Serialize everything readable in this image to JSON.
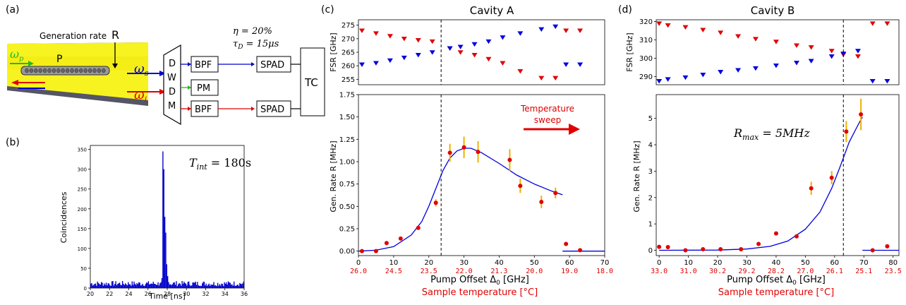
{
  "panels": {
    "a": "(a)",
    "b": "(b)",
    "c": "(c)",
    "d": "(d)"
  },
  "schematic": {
    "generation_rate": "Generation rate",
    "generation_rate_symbol": "R",
    "pump_label": "P",
    "omega_p": "ω",
    "omega_p_sub": "p",
    "omega_s": "ω",
    "omega_s_sub": "s",
    "omega_i": "ω",
    "omega_i_sub": "i",
    "dwdm": [
      "D",
      "W",
      "D",
      "M"
    ],
    "bpf": "BPF",
    "pm": "PM",
    "spad": "SPAD",
    "tc": "TC",
    "eta": "η = 20%",
    "tau": "τ",
    "tau_sub": "D",
    "tau_val": " = 15μs",
    "colors": {
      "waveguide": "#f7f320",
      "pump": "#22bb22",
      "signal": "#1010d0",
      "idler": "#e00000"
    }
  },
  "chart_data": [
    {
      "id": "b",
      "type": "bar",
      "xlabel": "Time [ns]",
      "ylabel": "Coincidences",
      "annotation": {
        "text": "T",
        "sub": "int",
        "val": " = 180s"
      },
      "xlim": [
        20,
        36
      ],
      "ylim": [
        0,
        360
      ],
      "xticks": [
        "20",
        "22",
        "24",
        "26",
        "28",
        "30",
        "32",
        "34",
        "36"
      ],
      "yticks": [
        "0",
        "50",
        "100",
        "150",
        "200",
        "250",
        "300",
        "350"
      ],
      "peak": [
        [
          27.2,
          12
        ],
        [
          27.4,
          25
        ],
        [
          27.5,
          120
        ],
        [
          27.55,
          345
        ],
        [
          27.6,
          300
        ],
        [
          27.7,
          180
        ],
        [
          27.8,
          140
        ],
        [
          27.9,
          60
        ],
        [
          28.0,
          30
        ],
        [
          28.1,
          15
        ]
      ],
      "baseline": 12,
      "color": "#0000cc"
    },
    {
      "id": "c_fsr",
      "type": "scatter",
      "ylabel": "FSR [GHz]",
      "title": "Cavity A",
      "ylim": [
        253,
        277
      ],
      "xlim": [
        0,
        70
      ],
      "yticks": [
        "255",
        "260",
        "265",
        "270",
        "275"
      ],
      "divider_x": 23.5,
      "series": [
        {
          "color": "#e00000",
          "marker": "tri-down",
          "x": [
            1,
            5,
            9,
            13,
            17,
            21,
            26,
            29,
            33,
            37,
            41,
            46,
            52,
            56,
            59,
            63
          ],
          "y": [
            273,
            272,
            271,
            270,
            269.5,
            269,
            266.5,
            265,
            264,
            262.5,
            261,
            258,
            255.5,
            255.5,
            273,
            273
          ]
        },
        {
          "color": "#0000dd",
          "marker": "tri-down",
          "x": [
            1,
            5,
            9,
            13,
            17,
            21,
            26,
            29,
            33,
            37,
            41,
            46,
            52,
            56,
            59,
            63
          ],
          "y": [
            260.5,
            261,
            262,
            263,
            264,
            265,
            266.5,
            267,
            268,
            269,
            270.5,
            272,
            273.5,
            274.5,
            260.5,
            260.5
          ]
        }
      ]
    },
    {
      "id": "c_rate",
      "type": "scatter",
      "xlabel": "Pump Offset Δ",
      "xlabel_sub": "0",
      "xlabel_unit": " [GHz]",
      "ylabel": "Gen. Rate R [MHz]",
      "xlim": [
        0,
        70
      ],
      "ylim": [
        -0.05,
        1.75
      ],
      "xticks": [
        "0",
        "10",
        "20",
        "30",
        "40",
        "50",
        "60",
        "70"
      ],
      "yticks": [
        "0.00",
        "0.25",
        "0.50",
        "0.75",
        "1.00",
        "1.25",
        "1.50",
        "1.75"
      ],
      "temp_ticks": [
        "26.0",
        "24.5",
        "23.5",
        "22.0",
        "21.3",
        "20.0",
        "19.0",
        "18.0"
      ],
      "temp_label": "Sample temperature [°C]",
      "sweep_label": [
        "Temperature",
        "sweep"
      ],
      "divider_x": 23.5,
      "points": [
        {
          "x": 1,
          "y": 0.0,
          "err": 0
        },
        {
          "x": 5,
          "y": 0.0,
          "err": 0
        },
        {
          "x": 8,
          "y": 0.09,
          "err": 0
        },
        {
          "x": 12,
          "y": 0.14,
          "err": 0
        },
        {
          "x": 17,
          "y": 0.26,
          "err": 0
        },
        {
          "x": 22,
          "y": 0.54,
          "err": 0.04
        },
        {
          "x": 26,
          "y": 1.1,
          "err": 0.1
        },
        {
          "x": 30,
          "y": 1.16,
          "err": 0.12
        },
        {
          "x": 34,
          "y": 1.11,
          "err": 0.12
        },
        {
          "x": 43,
          "y": 1.02,
          "err": 0.12
        },
        {
          "x": 46,
          "y": 0.73,
          "err": 0.08
        },
        {
          "x": 52,
          "y": 0.55,
          "err": 0.07
        },
        {
          "x": 56,
          "y": 0.65,
          "err": 0.06
        },
        {
          "x": 59,
          "y": 0.08,
          "err": 0
        },
        {
          "x": 63,
          "y": 0.01,
          "err": 0
        }
      ],
      "fit": [
        [
          0,
          0
        ],
        [
          5,
          0.01
        ],
        [
          10,
          0.05
        ],
        [
          15,
          0.18
        ],
        [
          18,
          0.33
        ],
        [
          20,
          0.5
        ],
        [
          22,
          0.7
        ],
        [
          24,
          0.9
        ],
        [
          26,
          1.04
        ],
        [
          28,
          1.12
        ],
        [
          30,
          1.15
        ],
        [
          32,
          1.15
        ],
        [
          35,
          1.1
        ],
        [
          40,
          0.98
        ],
        [
          45,
          0.85
        ],
        [
          50,
          0.75
        ],
        [
          55,
          0.67
        ],
        [
          58,
          0.63
        ],
        [
          58,
          0
        ],
        [
          70,
          0
        ]
      ]
    },
    {
      "id": "d_fsr",
      "type": "scatter",
      "ylabel": "FSR [GHz]",
      "title": "Cavity B",
      "ylim": [
        285.5,
        321
      ],
      "xlim": [
        -1,
        82
      ],
      "yticks": [
        "290",
        "300",
        "310",
        "320"
      ],
      "divider_x": 63,
      "series": [
        {
          "color": "#e00000",
          "marker": "tri-down",
          "x": [
            0,
            3,
            9,
            15,
            21,
            27,
            33,
            40,
            47,
            52,
            59,
            63,
            68,
            73,
            78
          ],
          "y": [
            319,
            318,
            317,
            315.5,
            314,
            312,
            310.5,
            309,
            307,
            306,
            304,
            302,
            301,
            319,
            319
          ]
        },
        {
          "color": "#0000dd",
          "marker": "tri-down",
          "x": [
            0,
            3,
            9,
            15,
            21,
            27,
            33,
            40,
            47,
            52,
            59,
            63,
            68,
            73,
            78
          ],
          "y": [
            287.5,
            288.5,
            289.5,
            291,
            292.5,
            293.5,
            294.5,
            296,
            297.5,
            298.5,
            301,
            302.5,
            304,
            287.5,
            287.5
          ]
        }
      ]
    },
    {
      "id": "d_rate",
      "type": "scatter",
      "xlabel": "Pump Offset Δ",
      "xlabel_sub": "0",
      "xlabel_unit": " [GHz]",
      "ylabel": "Gen. Rate R [MHz]",
      "xlim": [
        -1,
        82
      ],
      "ylim": [
        -0.2,
        5.9
      ],
      "xticks": [
        "0",
        "10",
        "20",
        "30",
        "40",
        "50",
        "60",
        "70",
        "80"
      ],
      "yticks": [
        "0",
        "1",
        "2",
        "3",
        "4",
        "5"
      ],
      "temp_ticks": [
        "33.0",
        "31.0",
        "30.2",
        "29.2",
        "28.2",
        "27.0",
        "26.1",
        "25.1",
        "23.5"
      ],
      "temp_label": "Sample temperature [°C]",
      "annotation": {
        "text": "R",
        "sub": "max",
        "val": " = 5MHz"
      },
      "divider_x": 63,
      "points": [
        {
          "x": 0,
          "y": 0.13,
          "err": 0
        },
        {
          "x": 3,
          "y": 0.12,
          "err": 0
        },
        {
          "x": 9,
          "y": 0.0,
          "err": 0
        },
        {
          "x": 15,
          "y": 0.04,
          "err": 0
        },
        {
          "x": 21,
          "y": 0.04,
          "err": 0
        },
        {
          "x": 28,
          "y": 0.04,
          "err": 0
        },
        {
          "x": 34,
          "y": 0.24,
          "err": 0
        },
        {
          "x": 40,
          "y": 0.64,
          "err": 0
        },
        {
          "x": 47,
          "y": 0.53,
          "err": 0
        },
        {
          "x": 52,
          "y": 2.35,
          "err": 0.25
        },
        {
          "x": 59,
          "y": 2.75,
          "err": 0.25
        },
        {
          "x": 64,
          "y": 4.5,
          "err": 0.4
        },
        {
          "x": 69,
          "y": 5.15,
          "err": 0.6
        },
        {
          "x": 73,
          "y": 0.0,
          "err": 0
        },
        {
          "x": 78,
          "y": 0.15,
          "err": 0
        }
      ],
      "fit": [
        [
          0,
          0
        ],
        [
          20,
          0.01
        ],
        [
          30,
          0.05
        ],
        [
          38,
          0.15
        ],
        [
          44,
          0.35
        ],
        [
          50,
          0.8
        ],
        [
          55,
          1.45
        ],
        [
          59,
          2.35
        ],
        [
          62,
          3.2
        ],
        [
          65,
          4.1
        ],
        [
          68,
          4.75
        ],
        [
          69.5,
          5.05
        ],
        [
          69.5,
          0
        ],
        [
          82,
          0
        ]
      ]
    }
  ]
}
